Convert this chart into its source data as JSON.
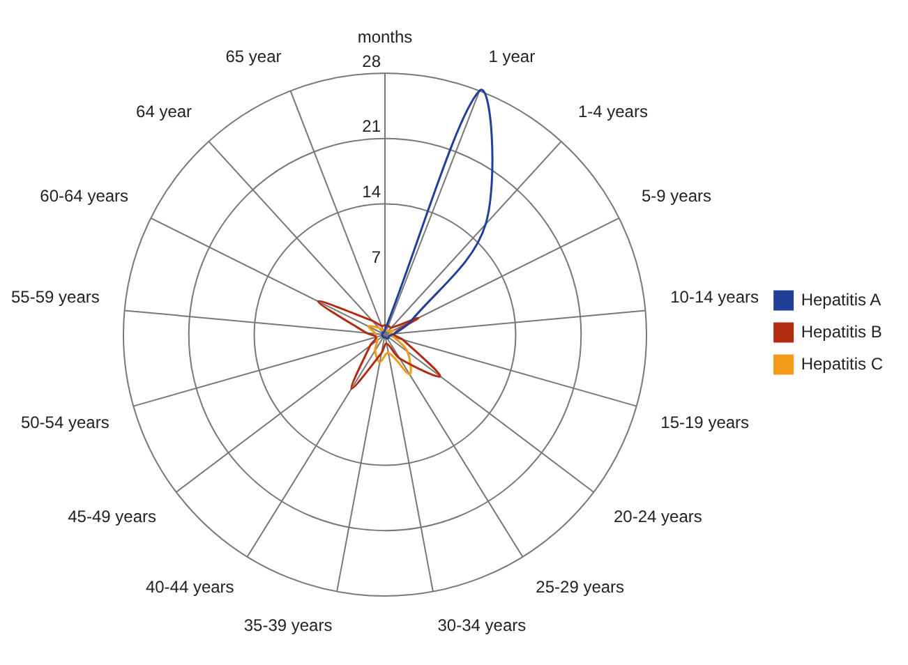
{
  "chart_data": {
    "type": "radar",
    "categories": [
      "months",
      "1 year",
      "1-4 years",
      "5-9 years",
      "10-14 years",
      "15-19 years",
      "20-24 years",
      "25-29 years",
      "30-34 years",
      "35-39 years",
      "40-44 years",
      "45-49 years",
      "50-54 years",
      "55-59 years",
      "60-64 years",
      "64 year",
      "65 year"
    ],
    "series": [
      {
        "name": "Hepatitis A",
        "color": "#1f3f99",
        "values": [
          0.5,
          28,
          16,
          3,
          1,
          0.5,
          0.5,
          0.5,
          0.3,
          0.3,
          0.3,
          0.3,
          0.3,
          0.3,
          0.3,
          0.3,
          0.3
        ]
      },
      {
        "name": "Hepatitis B",
        "color": "#b22a10",
        "values": [
          1,
          1,
          1,
          4,
          1,
          2,
          7.4,
          3,
          1,
          2,
          6.8,
          2,
          1,
          2,
          8,
          2,
          1
        ]
      },
      {
        "name": "Hepatitis C",
        "color": "#f29a1a",
        "values": [
          0.5,
          0.5,
          0.5,
          1,
          0.5,
          1,
          3,
          5,
          2,
          3,
          2,
          1,
          1,
          1,
          2,
          1,
          0.5
        ]
      }
    ],
    "ylim": [
      0,
      28
    ],
    "yticks": [
      7,
      14,
      21,
      28
    ],
    "grid": true,
    "legend": "right",
    "marker": "none"
  }
}
